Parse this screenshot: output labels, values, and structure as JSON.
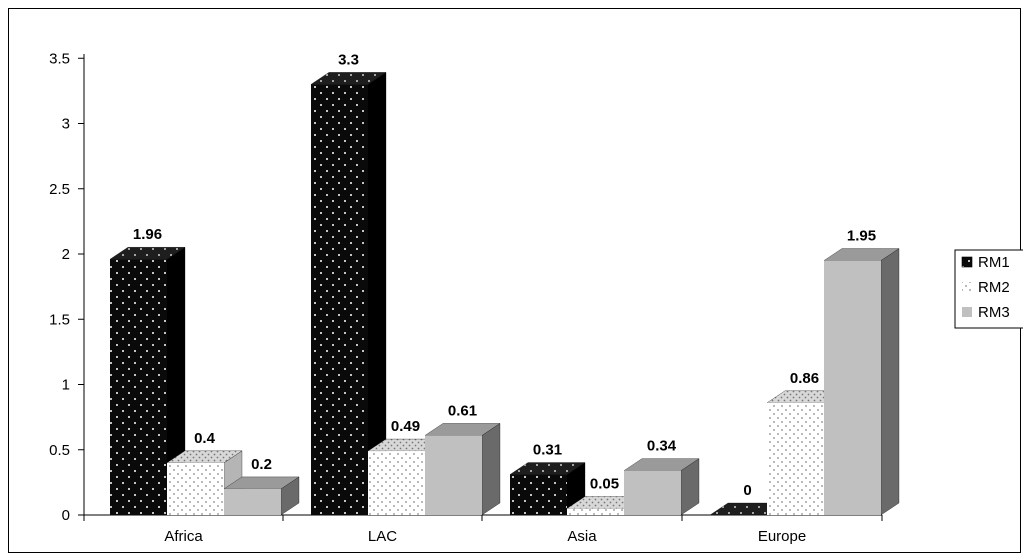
{
  "chart_data": {
    "type": "bar",
    "categories": [
      "Africa",
      "LAC",
      "Asia",
      "Europe"
    ],
    "series": [
      {
        "name": "RM1",
        "values": [
          1.96,
          3.3,
          0.31,
          0
        ],
        "color": "#0a0a0a",
        "pattern": "dots-white-on-black"
      },
      {
        "name": "RM2",
        "values": [
          0.4,
          0.49,
          0.05,
          0.86
        ],
        "color": "#ffffff",
        "pattern": "dots-gray-on-white"
      },
      {
        "name": "RM3",
        "values": [
          0.2,
          0.61,
          0.34,
          1.95
        ],
        "color": "#c0c0c0",
        "pattern": "solid"
      }
    ],
    "data_labels": [
      [
        "1.96",
        "0.4",
        "0.2"
      ],
      [
        "3.3",
        "0.49",
        "0.61"
      ],
      [
        "0.31",
        "0.05",
        "0.34"
      ],
      [
        "0",
        "0.86",
        "1.95"
      ]
    ],
    "yticks": [
      "0",
      "0.5",
      "1",
      "1.5",
      "2",
      "2.5",
      "3",
      "3.5"
    ],
    "ylim": [
      0,
      3.5
    ],
    "title": "",
    "xlabel": "",
    "ylabel": "",
    "grid": false,
    "legend": "right",
    "style": "3d-clustered-column"
  }
}
